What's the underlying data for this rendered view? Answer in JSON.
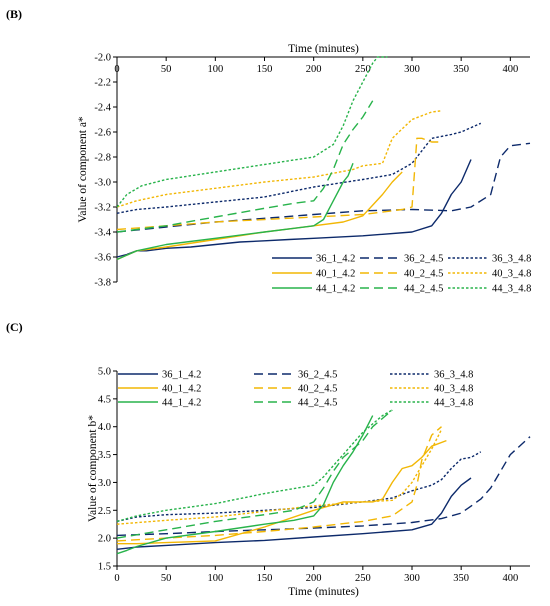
{
  "panel_labels": [
    "(B)",
    "(C)"
  ],
  "styles": {
    "36_1_4.2": {
      "color": "#0d2a6b",
      "dash": ""
    },
    "36_2_4.5": {
      "color": "#0d2a6b",
      "dash": "9,5"
    },
    "36_3_4.8": {
      "color": "#0d2a6b",
      "dash": "2.5,2"
    },
    "40_1_4.2": {
      "color": "#f2b705",
      "dash": ""
    },
    "40_2_4.5": {
      "color": "#f2b705",
      "dash": "9,5"
    },
    "40_3_4.8": {
      "color": "#f2b705",
      "dash": "2.5,2"
    },
    "44_1_4.2": {
      "color": "#28b34b",
      "dash": ""
    },
    "44_2_4.5": {
      "color": "#28b34b",
      "dash": "9,5"
    },
    "44_3_4.8": {
      "color": "#28b34b",
      "dash": "2.5,2"
    }
  },
  "chart_data": [
    {
      "type": "line",
      "panel": "(B)",
      "xlabel": "Time (minutes)",
      "ylabel": "Value of component a*",
      "xlim": [
        0,
        420
      ],
      "ylim": [
        -3.8,
        -2.0
      ],
      "xticks": [
        0,
        50,
        100,
        150,
        200,
        250,
        300,
        350,
        400
      ],
      "yticks": [
        -2.0,
        -2.2,
        -2.4,
        -2.6,
        -2.8,
        -3.0,
        -3.2,
        -3.4,
        -3.6,
        -3.8
      ],
      "x_axis_position": "top",
      "legend": "bottom-right",
      "series": [
        {
          "name": "36_1_4.2",
          "x": [
            0,
            10,
            20,
            30,
            50,
            75,
            100,
            125,
            150,
            175,
            200,
            250,
            300,
            320,
            330,
            340,
            350,
            360
          ],
          "y": [
            -3.6,
            -3.58,
            -3.55,
            -3.55,
            -3.53,
            -3.52,
            -3.5,
            -3.48,
            -3.47,
            -3.46,
            -3.45,
            -3.43,
            -3.4,
            -3.35,
            -3.25,
            -3.1,
            -3.0,
            -2.82
          ]
        },
        {
          "name": "36_2_4.5",
          "x": [
            0,
            50,
            100,
            150,
            200,
            250,
            300,
            340,
            360,
            380,
            390,
            400,
            420
          ],
          "y": [
            -3.4,
            -3.36,
            -3.32,
            -3.29,
            -3.26,
            -3.23,
            -3.22,
            -3.23,
            -3.2,
            -3.1,
            -2.8,
            -2.71,
            -2.69
          ]
        },
        {
          "name": "36_3_4.8",
          "x": [
            0,
            20,
            50,
            100,
            150,
            200,
            250,
            280,
            300,
            320,
            340,
            350,
            370
          ],
          "y": [
            -3.25,
            -3.22,
            -3.2,
            -3.16,
            -3.12,
            -3.04,
            -2.98,
            -2.94,
            -2.85,
            -2.65,
            -2.62,
            -2.6,
            -2.53
          ]
        },
        {
          "name": "40_1_4.2",
          "x": [
            0,
            20,
            50,
            100,
            150,
            180,
            200,
            230,
            250,
            270,
            280,
            290
          ],
          "y": [
            -3.62,
            -3.55,
            -3.52,
            -3.46,
            -3.4,
            -3.37,
            -3.35,
            -3.32,
            -3.27,
            -3.1,
            -3.0,
            -2.92
          ]
        },
        {
          "name": "40_2_4.5",
          "x": [
            0,
            50,
            100,
            150,
            200,
            250,
            290,
            300,
            305,
            310,
            320,
            330
          ],
          "y": [
            -3.38,
            -3.35,
            -3.32,
            -3.3,
            -3.28,
            -3.26,
            -3.22,
            -3.2,
            -2.65,
            -2.65,
            -2.68,
            -2.68
          ]
        },
        {
          "name": "40_3_4.8",
          "x": [
            0,
            20,
            50,
            100,
            150,
            200,
            240,
            250,
            270,
            280,
            300,
            320,
            330
          ],
          "y": [
            -3.2,
            -3.15,
            -3.1,
            -3.05,
            -3.0,
            -2.96,
            -2.9,
            -2.87,
            -2.85,
            -2.65,
            -2.5,
            -2.44,
            -2.43
          ]
        },
        {
          "name": "44_1_4.2",
          "x": [
            0,
            20,
            50,
            100,
            150,
            180,
            200,
            210,
            220,
            230,
            235,
            240
          ],
          "y": [
            -3.62,
            -3.55,
            -3.5,
            -3.45,
            -3.4,
            -3.37,
            -3.35,
            -3.3,
            -3.15,
            -3.0,
            -2.95,
            -2.85
          ]
        },
        {
          "name": "44_2_4.5",
          "x": [
            0,
            50,
            100,
            150,
            180,
            200,
            210,
            220,
            230,
            240,
            250,
            260
          ],
          "y": [
            -3.4,
            -3.35,
            -3.28,
            -3.21,
            -3.17,
            -3.15,
            -3.05,
            -2.9,
            -2.7,
            -2.58,
            -2.48,
            -2.35
          ]
        },
        {
          "name": "44_3_4.8",
          "x": [
            0,
            10,
            25,
            50,
            100,
            150,
            200,
            220,
            230,
            240,
            250,
            260,
            265,
            275
          ],
          "y": [
            -3.2,
            -3.1,
            -3.03,
            -2.98,
            -2.92,
            -2.86,
            -2.8,
            -2.7,
            -2.55,
            -2.35,
            -2.2,
            -2.05,
            -2.0,
            -2.0
          ]
        }
      ],
      "legend_order": [
        "36_1_4.2",
        "36_2_4.5",
        "36_3_4.8",
        "40_1_4.2",
        "40_2_4.5",
        "40_3_4.8",
        "44_1_4.2",
        "44_2_4.5",
        "44_3_4.8"
      ]
    },
    {
      "type": "line",
      "panel": "(C)",
      "xlabel": "Time (minutes)",
      "ylabel": "Value of component b*",
      "xlim": [
        0,
        420
      ],
      "ylim": [
        1.5,
        5.0
      ],
      "xticks": [
        0,
        50,
        100,
        150,
        200,
        250,
        300,
        350,
        400
      ],
      "yticks": [
        1.5,
        2.0,
        2.5,
        3.0,
        3.5,
        4.0,
        4.5,
        5.0
      ],
      "x_axis_position": "bottom",
      "legend": "top",
      "series": [
        {
          "name": "36_1_4.2",
          "x": [
            0,
            10,
            20,
            30,
            50,
            100,
            150,
            200,
            250,
            300,
            320,
            330,
            340,
            350,
            360
          ],
          "y": [
            1.8,
            1.82,
            1.84,
            1.85,
            1.87,
            1.92,
            1.96,
            2.02,
            2.08,
            2.15,
            2.25,
            2.45,
            2.75,
            2.95,
            3.08
          ]
        },
        {
          "name": "36_2_4.5",
          "x": [
            0,
            50,
            100,
            150,
            200,
            250,
            300,
            330,
            350,
            370,
            380,
            390,
            400,
            420
          ],
          "y": [
            2.05,
            2.08,
            2.12,
            2.15,
            2.18,
            2.22,
            2.28,
            2.35,
            2.45,
            2.7,
            2.9,
            3.2,
            3.5,
            3.82
          ]
        },
        {
          "name": "36_3_4.8",
          "x": [
            0,
            20,
            50,
            100,
            150,
            200,
            250,
            280,
            300,
            310,
            320,
            330,
            340,
            350,
            360,
            370
          ],
          "y": [
            2.3,
            2.38,
            2.42,
            2.45,
            2.5,
            2.55,
            2.65,
            2.72,
            2.85,
            2.9,
            2.95,
            3.05,
            3.25,
            3.42,
            3.45,
            3.55
          ]
        },
        {
          "name": "40_1_4.2",
          "x": [
            0,
            20,
            50,
            100,
            150,
            200,
            230,
            260,
            270,
            280,
            290,
            300,
            310,
            320,
            335
          ],
          "y": [
            1.9,
            1.9,
            1.92,
            1.95,
            2.2,
            2.5,
            2.65,
            2.65,
            2.7,
            3.0,
            3.25,
            3.3,
            3.45,
            3.65,
            3.75
          ]
        },
        {
          "name": "40_2_4.5",
          "x": [
            0,
            50,
            100,
            150,
            200,
            250,
            280,
            300,
            305,
            310,
            320,
            330
          ],
          "y": [
            1.95,
            2.0,
            2.05,
            2.12,
            2.2,
            2.3,
            2.4,
            2.65,
            2.95,
            3.4,
            3.85,
            4.0
          ]
        },
        {
          "name": "40_3_4.8",
          "x": [
            0,
            50,
            100,
            150,
            200,
            250,
            280,
            290,
            300,
            310,
            320,
            330
          ],
          "y": [
            2.25,
            2.32,
            2.38,
            2.48,
            2.58,
            2.65,
            2.68,
            2.8,
            3.0,
            3.3,
            3.6,
            3.95
          ]
        },
        {
          "name": "44_1_4.2",
          "x": [
            0,
            10,
            20,
            50,
            100,
            150,
            180,
            200,
            210,
            220,
            230,
            240,
            250,
            260
          ],
          "y": [
            1.72,
            1.78,
            1.85,
            2.0,
            2.12,
            2.25,
            2.32,
            2.4,
            2.6,
            3.0,
            3.3,
            3.55,
            3.85,
            4.2
          ]
        },
        {
          "name": "44_2_4.5",
          "x": [
            0,
            50,
            100,
            150,
            180,
            200,
            210,
            220,
            230,
            240,
            250,
            260,
            270,
            280
          ],
          "y": [
            2.0,
            2.15,
            2.3,
            2.42,
            2.5,
            2.65,
            2.9,
            3.2,
            3.45,
            3.6,
            3.75,
            4.0,
            4.15,
            4.3
          ]
        },
        {
          "name": "44_3_4.8",
          "x": [
            0,
            20,
            50,
            100,
            150,
            200,
            210,
            220,
            230,
            240,
            250,
            260,
            270,
            280
          ],
          "y": [
            2.3,
            2.4,
            2.5,
            2.62,
            2.8,
            2.95,
            3.1,
            3.3,
            3.5,
            3.7,
            3.9,
            4.05,
            4.2,
            4.3
          ]
        }
      ],
      "legend_order": [
        "36_1_4.2",
        "36_2_4.5",
        "36_3_4.8",
        "40_1_4.2",
        "40_2_4.5",
        "40_3_4.8",
        "44_1_4.2",
        "44_2_4.5",
        "44_3_4.8"
      ]
    }
  ]
}
